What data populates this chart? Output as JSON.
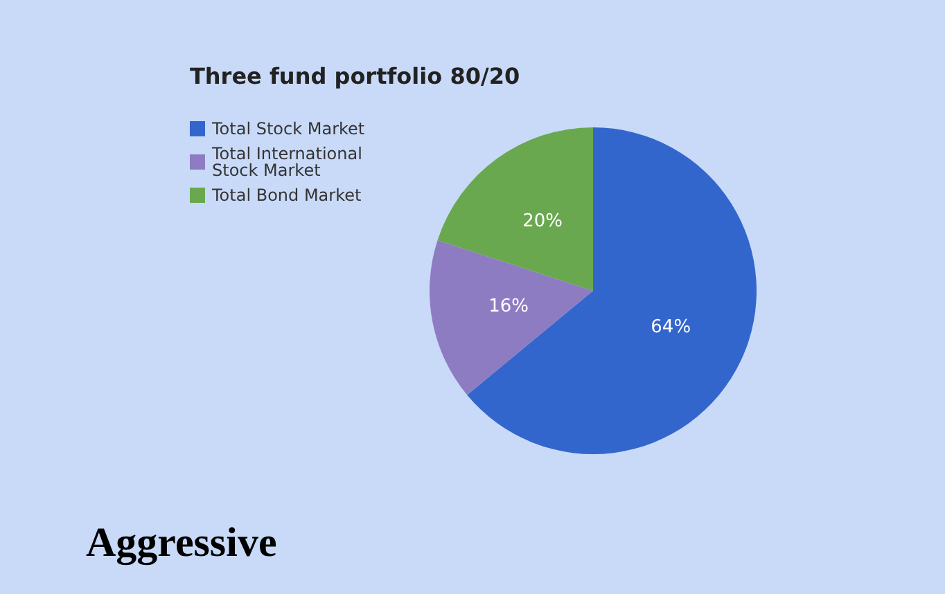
{
  "chart_data": {
    "type": "pie",
    "title": "Three fund portfolio 80/20",
    "categories": [
      "Total Stock Market",
      "Total International Stock Market",
      "Total Bond Market"
    ],
    "values": [
      64,
      16,
      20
    ],
    "colors": [
      "#3366cc",
      "#8e7cc3",
      "#6aa84f"
    ],
    "value_labels": [
      "64%",
      "16%",
      "20%"
    ],
    "legend": "top left",
    "annotations": [
      "Aggressive"
    ]
  }
}
